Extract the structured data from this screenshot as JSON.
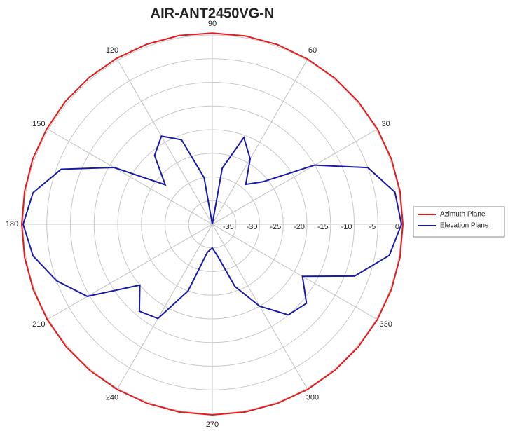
{
  "chart_data": {
    "type": "polar",
    "title": "AIR-ANT2450VG-N",
    "theta": [
      0,
      10,
      20,
      30,
      40,
      50,
      60,
      70,
      80,
      90,
      100,
      110,
      120,
      130,
      140,
      150,
      160,
      170,
      180,
      190,
      200,
      210,
      220,
      230,
      240,
      250,
      260,
      270,
      280,
      290,
      300,
      310,
      320,
      330,
      340,
      350
    ],
    "rlim": [
      -40,
      0
    ],
    "rticks": [
      -35,
      -30,
      -25,
      -20,
      -15,
      -10,
      -5,
      0
    ],
    "thetaticks": [
      30,
      60,
      90,
      120,
      150,
      180,
      210,
      240,
      270,
      300,
      330
    ],
    "grid": true,
    "legend": "right",
    "series": [
      {
        "name": "Azimuth Plane",
        "color": "#e41a1c",
        "values": [
          0.3,
          0.3,
          0.3,
          0.3,
          0.3,
          0.3,
          0.3,
          0.4,
          0.4,
          0.4,
          0.5,
          0.5,
          0.5,
          0.5,
          0.5,
          0.4,
          0.4,
          0.3,
          0.3,
          0.3,
          0.3,
          0.3,
          0.3,
          0.3,
          0.3,
          0.3,
          0.3,
          0.3,
          0.3,
          0.3,
          0.3,
          0.3,
          0.3,
          0.3,
          0.3,
          0.3
        ]
      },
      {
        "name": "Elevation Plane",
        "color": "#1a1aa8",
        "values": [
          0,
          -0.8,
          -5,
          -15,
          -26,
          -29,
          -24,
          -20.5,
          -28,
          -40,
          -30,
          -21,
          -18.5,
          -21,
          -27,
          -16,
          -6,
          -1.5,
          0,
          -1.5,
          -5,
          -9.5,
          -20,
          -16,
          -17,
          -25,
          -34,
          -35,
          -33,
          -26,
          -20,
          -15,
          -14,
          -18,
          -8,
          -2
        ]
      }
    ]
  }
}
